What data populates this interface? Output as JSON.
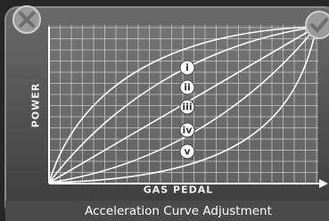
{
  "axes": {
    "y_label": "POWER",
    "x_label": "GAS PEDAL"
  },
  "curves": [
    {
      "label": "i"
    },
    {
      "label": "ii"
    },
    {
      "label": "iii"
    },
    {
      "label": "iv"
    },
    {
      "label": "v"
    }
  ],
  "footer": {
    "title": "Acceleration Curve Adjustment"
  }
}
